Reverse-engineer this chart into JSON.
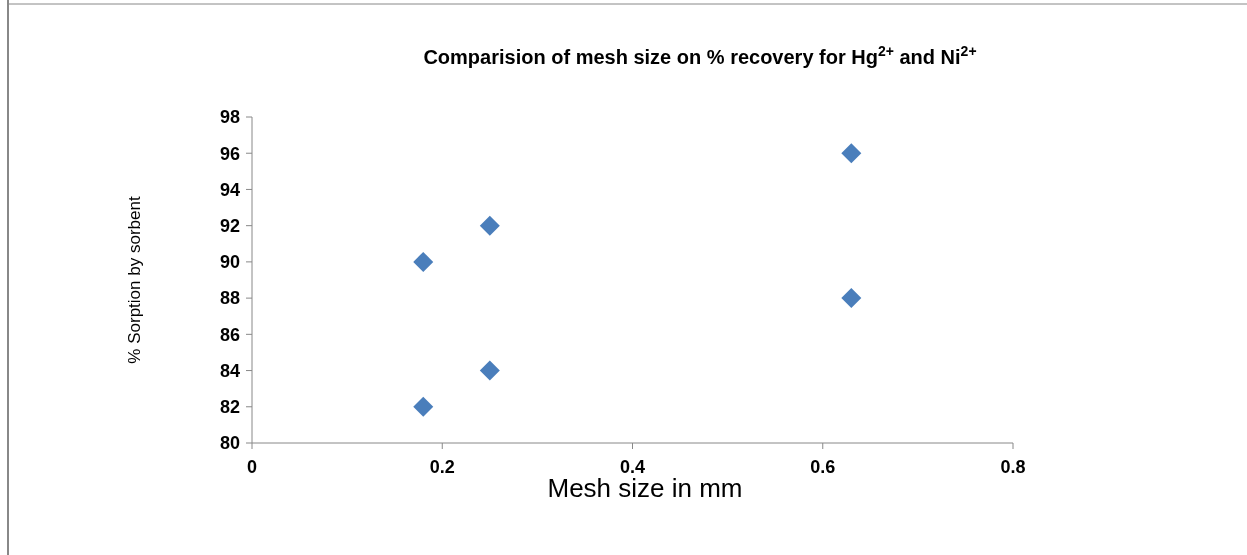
{
  "chart_data": {
    "type": "scatter",
    "title": "Comparision of mesh size on % recovery  for Hg$^{2+}$ and Ni$^{2+}$",
    "xlabel": "Mesh size in mm",
    "ylabel": "% Sorption by sorbent",
    "x": [
      0.18,
      0.18,
      0.25,
      0.25,
      0.63,
      0.63
    ],
    "series": [
      {
        "color": "#4a7ebb",
        "values": [
          90,
          82,
          92,
          84,
          96,
          88
        ]
      }
    ],
    "xlim": [
      0,
      0.8
    ],
    "xticks": [
      0,
      0.2,
      0.4,
      0.6,
      0.8
    ],
    "ylim": [
      80,
      98
    ],
    "yticks": [
      80,
      82,
      84,
      86,
      88,
      90,
      92,
      94,
      96,
      98
    ],
    "marker": "diamond",
    "grid": false
  }
}
